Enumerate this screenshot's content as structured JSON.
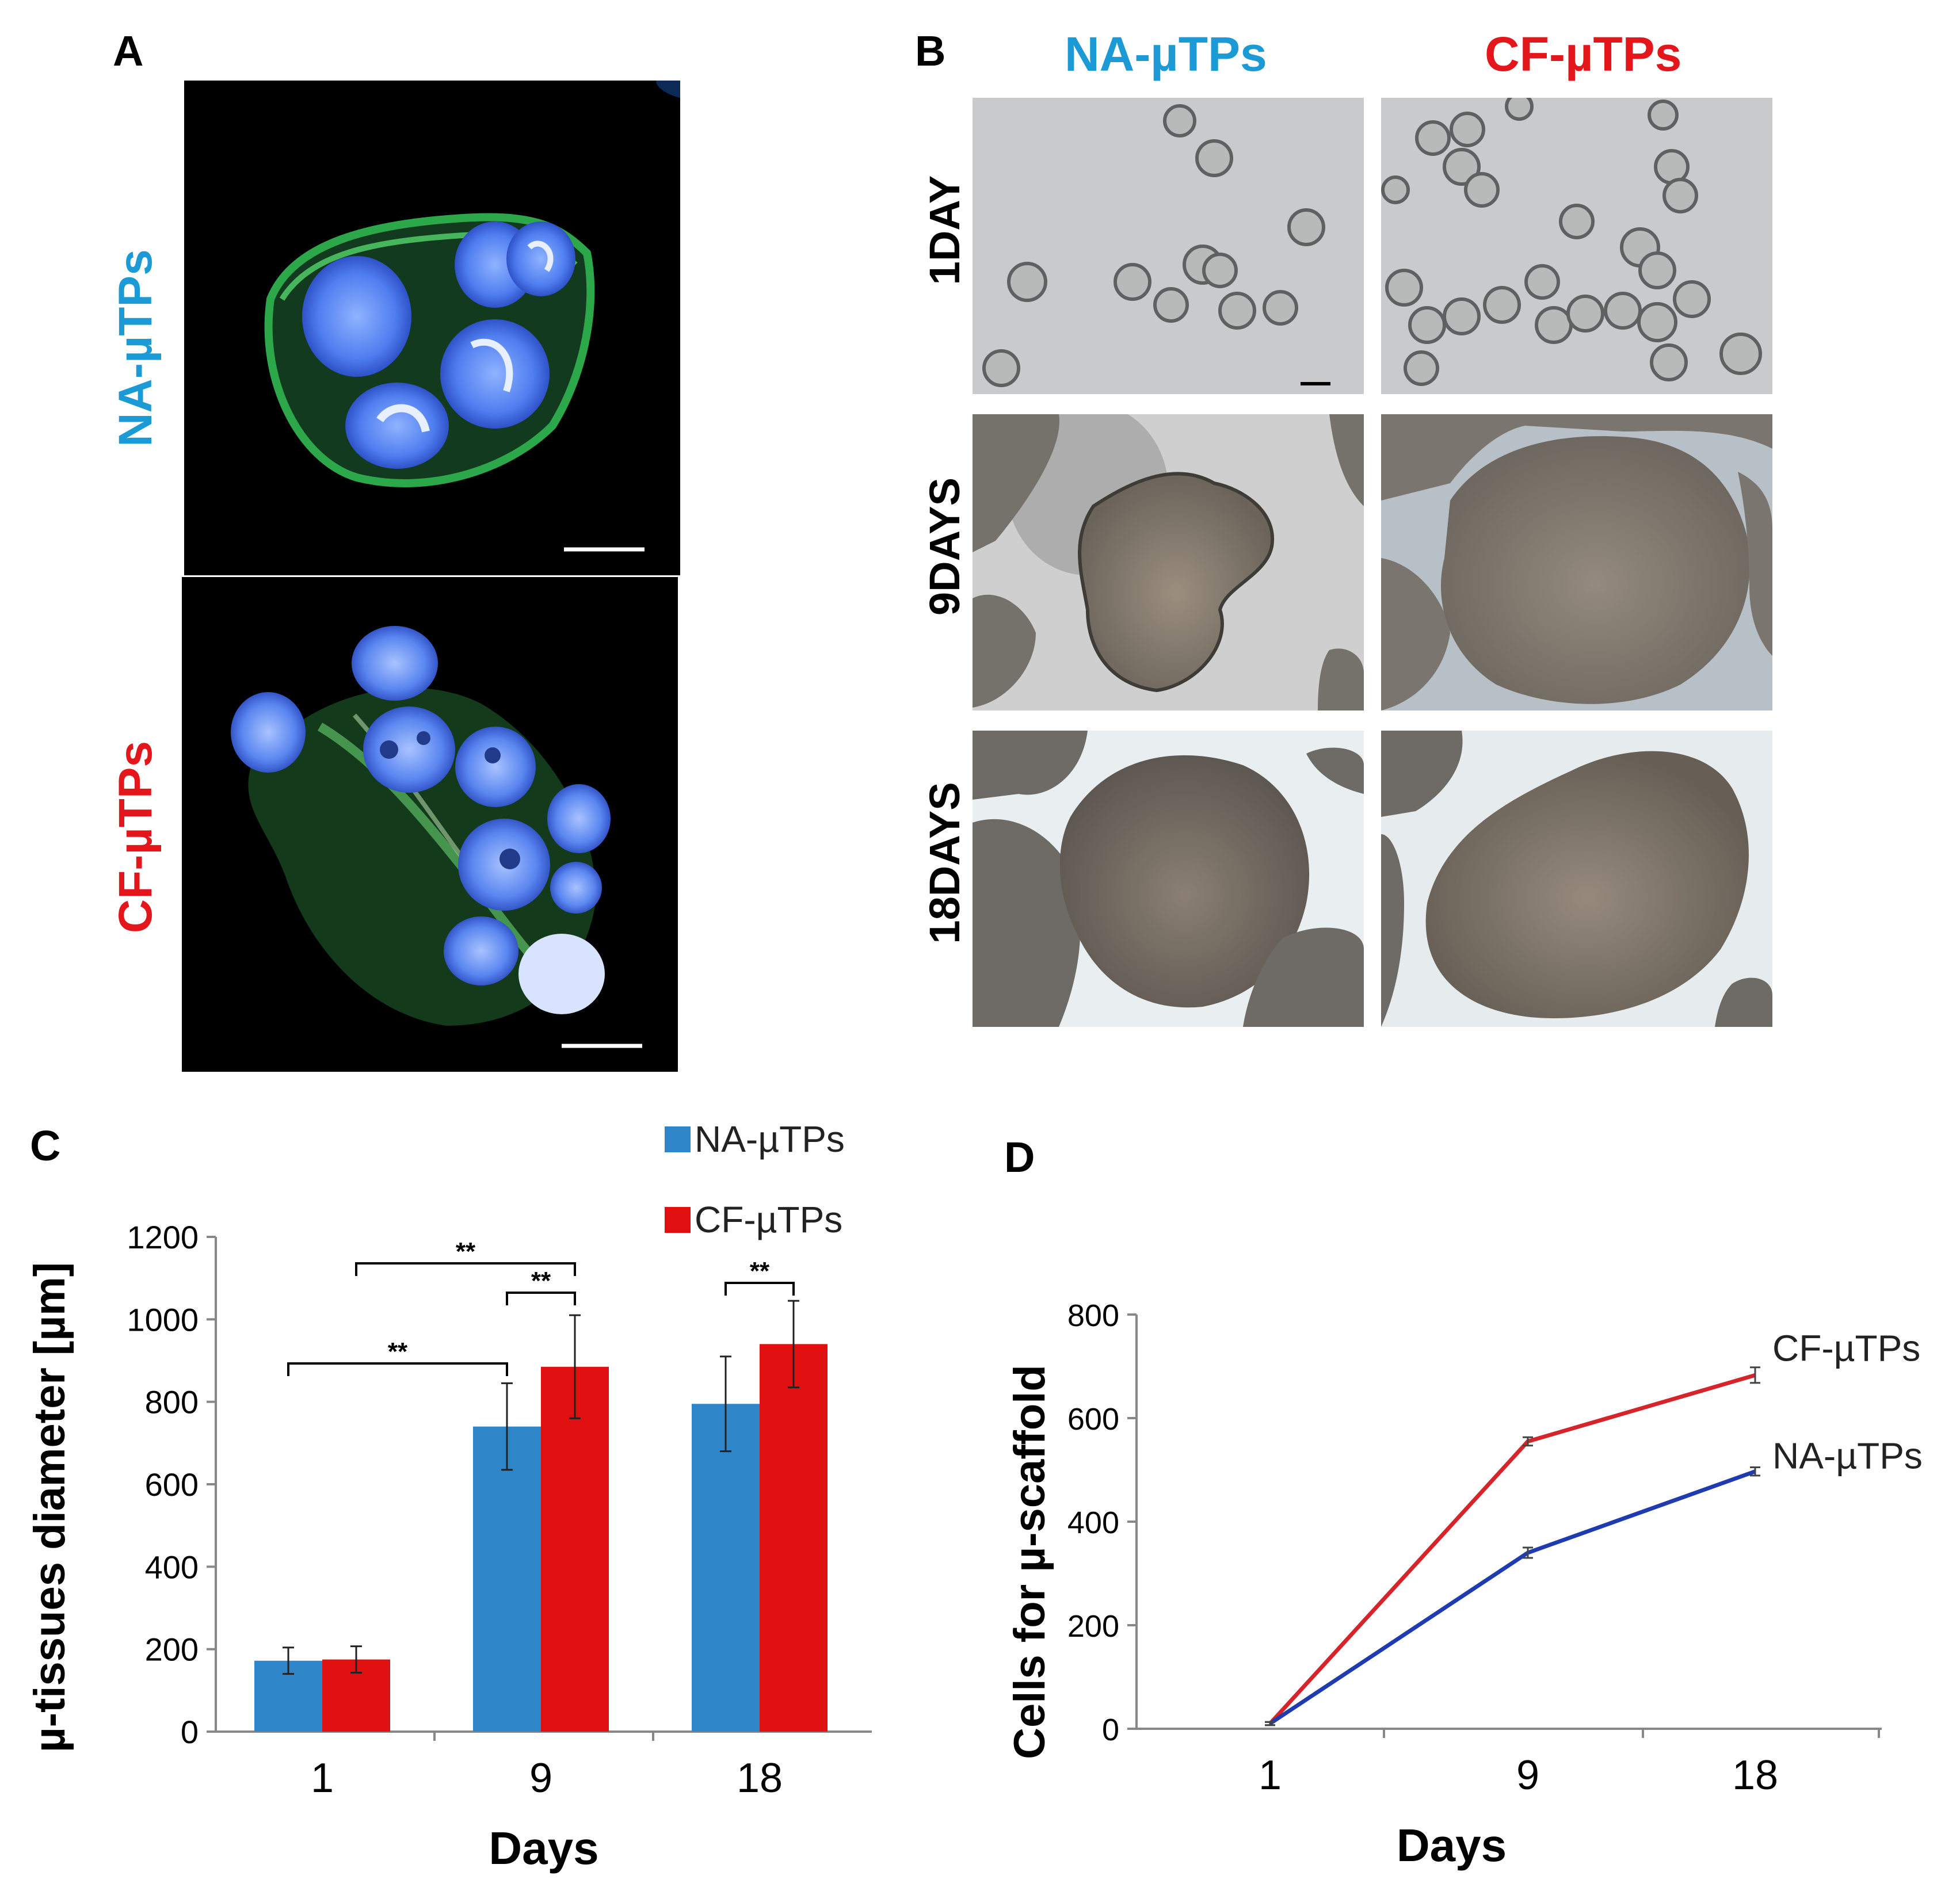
{
  "panel_a": {
    "letter": "A",
    "rows": [
      "NA-µTPs",
      "CF-µTPs"
    ]
  },
  "panel_b": {
    "letter": "B",
    "columns": [
      "NA-µTPs",
      "CF-µTPs"
    ],
    "rows": [
      "1DAY",
      "9DAYS",
      "18DAYS"
    ]
  },
  "colors": {
    "na": "#1c9ad6",
    "cf": "#e3161b",
    "bar_na": "#2e86c8",
    "bar_cf": "#e01010",
    "line_na": "#1f3bb0",
    "line_cf": "#d6252a"
  },
  "chart_data": [
    {
      "panel": "C",
      "type": "bar",
      "categories": [
        "1",
        "9",
        "18"
      ],
      "series": [
        {
          "name": "NA-µTPs",
          "values": [
            172,
            740,
            795
          ],
          "errors": [
            32,
            105,
            115
          ]
        },
        {
          "name": "CF-µTPs",
          "values": [
            175,
            885,
            940
          ],
          "errors": [
            32,
            125,
            105
          ]
        }
      ],
      "xlabel": "Days",
      "ylabel": "µ-tissues diameter [µm]",
      "ylim": [
        0,
        1200
      ],
      "yticks": [
        0,
        200,
        400,
        600,
        800,
        1000,
        1200
      ],
      "legend": "top-right",
      "significance": [
        "**",
        "**",
        "**",
        "**"
      ]
    },
    {
      "panel": "D",
      "type": "line",
      "x": [
        "1",
        "9",
        "18"
      ],
      "series": [
        {
          "name": "CF-µTPs",
          "values": [
            10,
            555,
            683
          ],
          "errors": [
            3,
            8,
            15
          ]
        },
        {
          "name": "NA-µTPs",
          "values": [
            10,
            340,
            497
          ],
          "errors": [
            3,
            10,
            8
          ]
        }
      ],
      "xlabel": "Days",
      "ylabel": "Cells for µ-scaffold",
      "ylim": [
        0,
        800
      ],
      "yticks": [
        0,
        200,
        400,
        600,
        800
      ]
    }
  ]
}
